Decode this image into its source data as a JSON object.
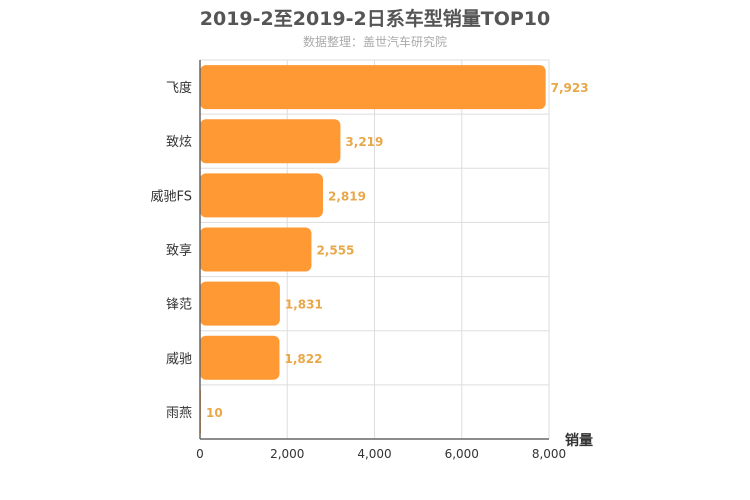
{
  "chart_data": {
    "type": "bar",
    "orientation": "horizontal",
    "title": "2019-2至2019-2日系车型销量TOP10",
    "subtitle": "数据整理：盖世汽车研究院",
    "xlabel": "销量",
    "categories": [
      "飞度",
      "致炫",
      "威驰FS",
      "致享",
      "锋范",
      "威驰",
      "雨燕"
    ],
    "values": [
      7923,
      3219,
      2819,
      2555,
      1831,
      1822,
      10
    ],
    "data_labels": [
      "7,923",
      "3,219",
      "2,819",
      "2,555",
      "1,831",
      "1,822",
      "10"
    ],
    "xlim": [
      0,
      8000
    ],
    "x_ticks": [
      0,
      2000,
      4000,
      6000,
      8000
    ],
    "x_tick_labels": [
      "0",
      "2,000",
      "4,000",
      "6,000",
      "8,000"
    ],
    "grid": true,
    "bar_color": "#ff9933",
    "label_color": "#e8a84a"
  }
}
